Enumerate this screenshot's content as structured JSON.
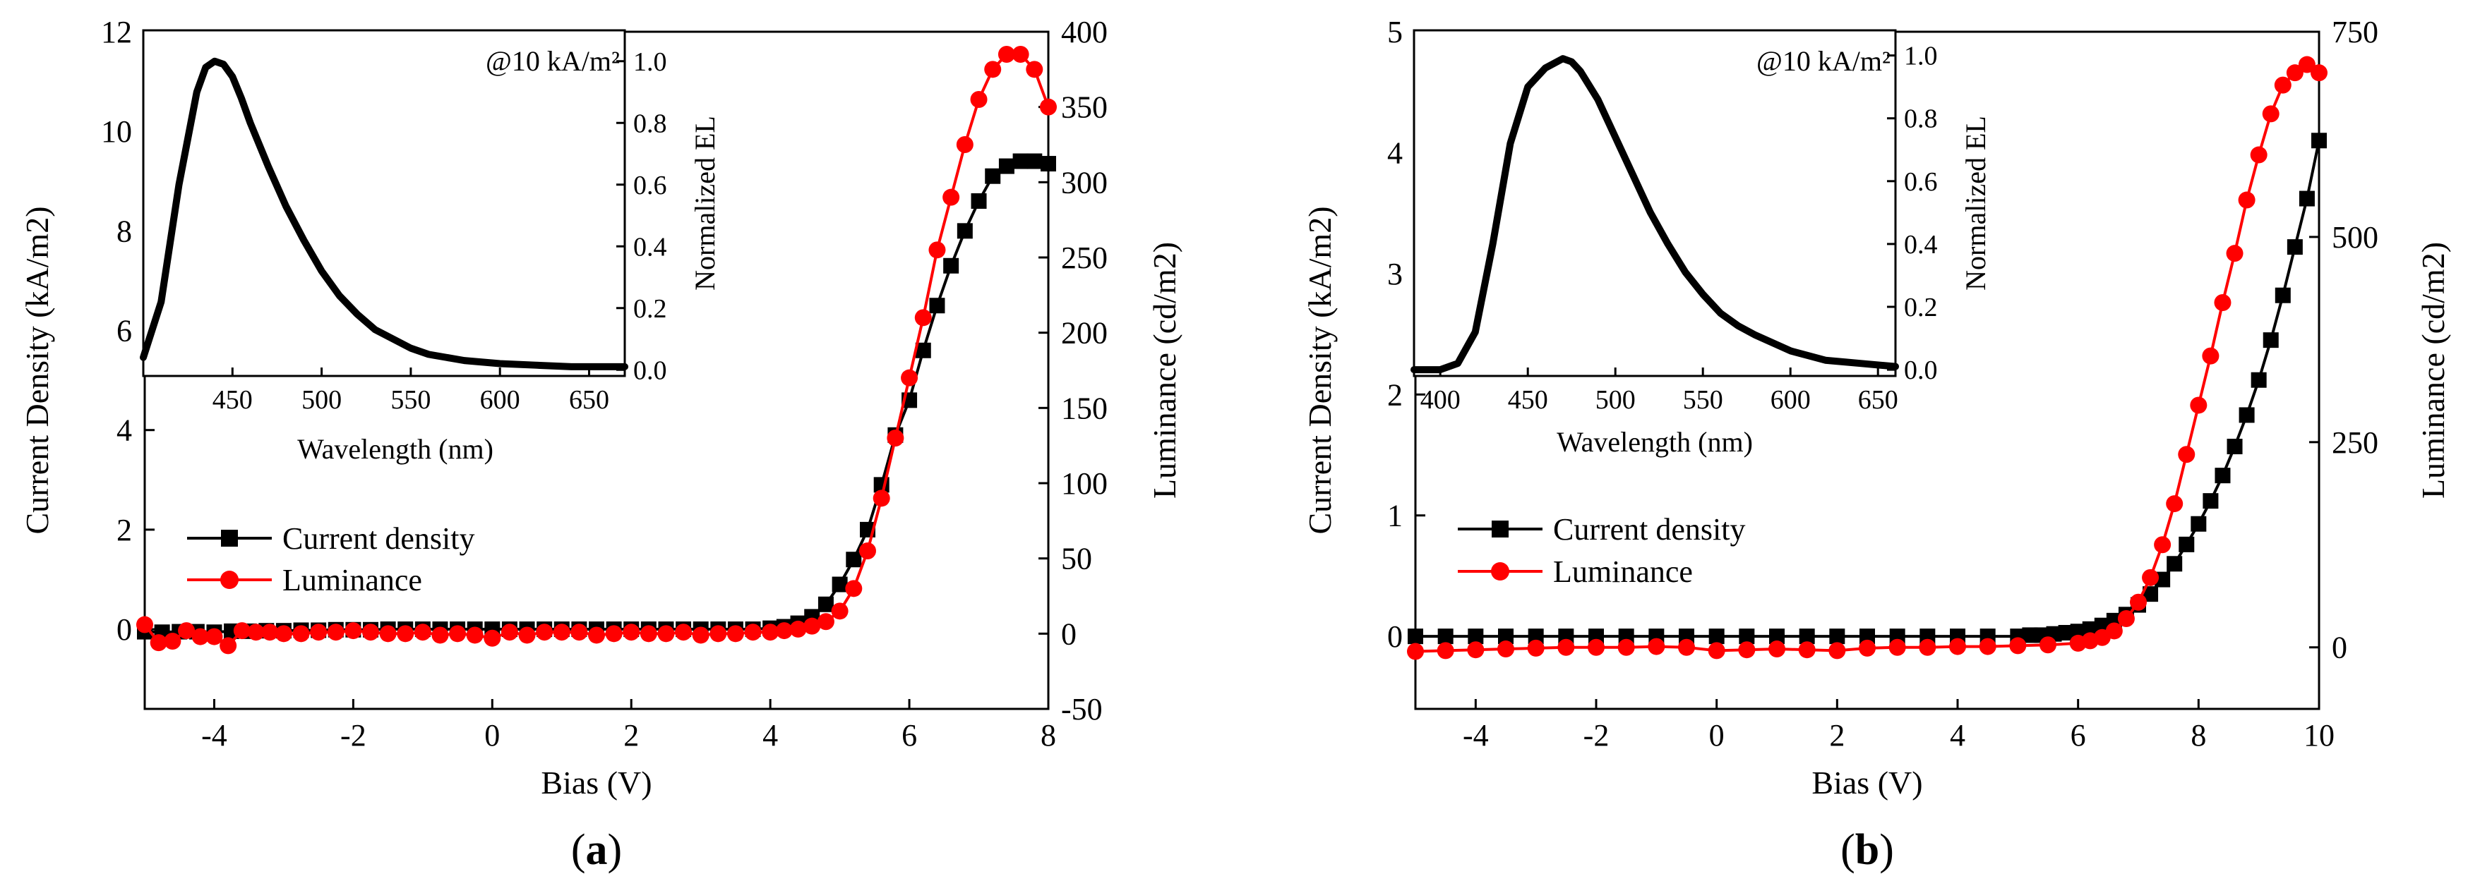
{
  "chart_data": [
    {
      "type": "line",
      "panel_label": "(a)",
      "panel_letter": "a",
      "xlabel": "Bias (V)",
      "ylabel": "Current Density (kA/m2)",
      "y2label": "Luminance (cd/m2)",
      "xlim": [
        -5,
        8
      ],
      "ylim": [
        -1.6,
        12
      ],
      "y2lim": [
        -50,
        400
      ],
      "xticks": [
        -4,
        -2,
        0,
        2,
        4,
        6,
        8
      ],
      "yticks": [
        0,
        2,
        4,
        6,
        8,
        10,
        12
      ],
      "y2ticks": [
        -50,
        0,
        50,
        100,
        150,
        200,
        250,
        300,
        350,
        400
      ],
      "series": [
        {
          "name": "Current density",
          "axis": "left",
          "color": "#000000",
          "marker": "square",
          "x": [
            -5.0,
            -4.75,
            -4.5,
            -4.25,
            -4.0,
            -3.75,
            -3.5,
            -3.25,
            -3.0,
            -2.75,
            -2.5,
            -2.25,
            -2.0,
            -1.75,
            -1.5,
            -1.25,
            -1.0,
            -0.75,
            -0.5,
            -0.25,
            0.0,
            0.25,
            0.5,
            0.75,
            1.0,
            1.25,
            1.5,
            1.75,
            2.0,
            2.25,
            2.5,
            2.75,
            3.0,
            3.25,
            3.5,
            3.75,
            4.0,
            4.2,
            4.4,
            4.6,
            4.8,
            5.0,
            5.2,
            5.4,
            5.6,
            5.8,
            6.0,
            6.2,
            6.4,
            6.6,
            6.8,
            7.0,
            7.2,
            7.4,
            7.6,
            7.8,
            8.0
          ],
          "values": [
            -0.05,
            -0.06,
            -0.05,
            -0.05,
            -0.06,
            -0.04,
            -0.04,
            -0.03,
            -0.03,
            -0.02,
            -0.02,
            -0.01,
            -0.01,
            -0.01,
            0.0,
            0.0,
            0.0,
            0.0,
            0.0,
            0.0,
            0.0,
            0.0,
            0.0,
            0.0,
            0.0,
            0.0,
            0.0,
            0.0,
            0.0,
            0.0,
            0.0,
            0.0,
            0.0,
            0.0,
            0.0,
            0.0,
            0.02,
            0.05,
            0.12,
            0.25,
            0.5,
            0.9,
            1.4,
            2.0,
            2.9,
            3.9,
            4.6,
            5.6,
            6.5,
            7.3,
            8.0,
            8.6,
            9.1,
            9.3,
            9.4,
            9.4,
            9.35
          ]
        },
        {
          "name": "Luminance",
          "axis": "right",
          "color": "#ff0000",
          "marker": "circle",
          "x": [
            -5.0,
            -4.8,
            -4.6,
            -4.4,
            -4.2,
            -4.0,
            -3.8,
            -3.6,
            -3.4,
            -3.2,
            -3.0,
            -2.75,
            -2.5,
            -2.25,
            -2.0,
            -1.75,
            -1.5,
            -1.25,
            -1.0,
            -0.75,
            -0.5,
            -0.25,
            0.0,
            0.25,
            0.5,
            0.75,
            1.0,
            1.25,
            1.5,
            1.75,
            2.0,
            2.25,
            2.5,
            2.75,
            3.0,
            3.25,
            3.5,
            3.75,
            4.0,
            4.2,
            4.4,
            4.6,
            4.8,
            5.0,
            5.2,
            5.4,
            5.6,
            5.8,
            6.0,
            6.2,
            6.4,
            6.6,
            6.8,
            7.0,
            7.2,
            7.4,
            7.6,
            7.8,
            8.0
          ],
          "values": [
            6,
            -6,
            -5,
            2,
            -2,
            -2,
            -8,
            2,
            1,
            1,
            0,
            0,
            1,
            1,
            2,
            1,
            0,
            0,
            1,
            -1,
            0,
            -1,
            -3,
            1,
            -1,
            1,
            1,
            1,
            -1,
            0,
            1,
            0,
            0,
            1,
            -1,
            0,
            0,
            1,
            1,
            2,
            3,
            5,
            8,
            15,
            30,
            55,
            90,
            130,
            170,
            210,
            255,
            290,
            325,
            355,
            375,
            385,
            385,
            375,
            350
          ]
        }
      ],
      "legend": [
        "Current density",
        "Luminance"
      ],
      "inset": {
        "annotation": "@10 kA/m²",
        "xlabel": "Wavelength (nm)",
        "ylabel": "Normalized EL",
        "xlim": [
          400,
          670
        ],
        "ylim": [
          -0.02,
          1.1
        ],
        "xticks": [
          450,
          500,
          550,
          600,
          650
        ],
        "yticks": [
          0.0,
          0.2,
          0.4,
          0.6,
          0.8,
          1.0
        ],
        "x": [
          400,
          410,
          420,
          430,
          435,
          440,
          445,
          450,
          455,
          460,
          470,
          480,
          490,
          500,
          510,
          520,
          530,
          540,
          550,
          560,
          570,
          580,
          600,
          620,
          640,
          670
        ],
        "values": [
          0.04,
          0.22,
          0.6,
          0.9,
          0.98,
          1.0,
          0.99,
          0.95,
          0.88,
          0.8,
          0.66,
          0.53,
          0.42,
          0.32,
          0.24,
          0.18,
          0.13,
          0.1,
          0.07,
          0.05,
          0.04,
          0.03,
          0.02,
          0.015,
          0.01,
          0.01
        ]
      }
    },
    {
      "type": "line",
      "panel_label": "(b)",
      "panel_letter": "b",
      "xlabel": "Bias (V)",
      "ylabel": "Current Density (kA/m2)",
      "y2label": "Luminance (cd/m2)",
      "xlim": [
        -5,
        10
      ],
      "ylim": [
        -0.6,
        5
      ],
      "y2lim": [
        -75,
        750
      ],
      "xticks": [
        -4,
        -2,
        0,
        2,
        4,
        6,
        8,
        10
      ],
      "yticks": [
        0,
        1,
        2,
        3,
        4,
        5
      ],
      "y2ticks": [
        0,
        250,
        500,
        750
      ],
      "series": [
        {
          "name": "Current density",
          "axis": "left",
          "color": "#000000",
          "marker": "square",
          "x": [
            -5.0,
            -4.5,
            -4.0,
            -3.5,
            -3.0,
            -2.5,
            -2.0,
            -1.5,
            -1.0,
            -0.5,
            0.0,
            0.5,
            1.0,
            1.5,
            2.0,
            2.5,
            3.0,
            3.5,
            4.0,
            4.5,
            5.0,
            5.2,
            5.4,
            5.6,
            5.8,
            6.0,
            6.2,
            6.4,
            6.6,
            6.8,
            7.0,
            7.2,
            7.4,
            7.6,
            7.8,
            8.0,
            8.2,
            8.4,
            8.6,
            8.8,
            9.0,
            9.2,
            9.4,
            9.6,
            9.8,
            10.0
          ],
          "values": [
            0.0,
            0.0,
            0.0,
            0.0,
            0.0,
            0.0,
            0.0,
            0.0,
            0.0,
            0.0,
            0.0,
            0.0,
            0.0,
            0.0,
            0.0,
            0.0,
            0.0,
            0.0,
            0.0,
            0.0,
            0.0,
            0.01,
            0.01,
            0.02,
            0.03,
            0.04,
            0.06,
            0.09,
            0.13,
            0.18,
            0.26,
            0.35,
            0.47,
            0.6,
            0.76,
            0.93,
            1.12,
            1.33,
            1.57,
            1.83,
            2.12,
            2.45,
            2.82,
            3.22,
            3.62,
            4.1
          ]
        },
        {
          "name": "Luminance",
          "axis": "right",
          "color": "#ff0000",
          "marker": "circle",
          "x": [
            -5.0,
            -4.5,
            -4.0,
            -3.5,
            -3.0,
            -2.5,
            -2.0,
            -1.5,
            -1.0,
            -0.5,
            0.0,
            0.5,
            1.0,
            1.5,
            2.0,
            2.5,
            3.0,
            3.5,
            4.0,
            4.5,
            5.0,
            5.5,
            6.0,
            6.2,
            6.4,
            6.6,
            6.8,
            7.0,
            7.2,
            7.4,
            7.6,
            7.8,
            8.0,
            8.2,
            8.4,
            8.6,
            8.8,
            9.0,
            9.2,
            9.4,
            9.6,
            9.8,
            10.0
          ],
          "values": [
            -5,
            -4,
            -3,
            -2,
            -1,
            0,
            0,
            0,
            1,
            0,
            -4,
            -3,
            -2,
            -3,
            -4,
            -1,
            0,
            0,
            1,
            1,
            2,
            3,
            5,
            8,
            12,
            20,
            35,
            55,
            85,
            125,
            175,
            235,
            295,
            355,
            420,
            480,
            545,
            600,
            650,
            685,
            700,
            710,
            700
          ]
        }
      ],
      "legend": [
        "Current density",
        "Luminance"
      ],
      "inset": {
        "annotation": "@10 kA/m²",
        "xlabel": "Wavelength (nm)",
        "ylabel": "Normalized EL",
        "xlim": [
          385,
          660
        ],
        "ylim": [
          -0.02,
          1.08
        ],
        "xticks": [
          400,
          450,
          500,
          550,
          600,
          650
        ],
        "yticks": [
          0.0,
          0.2,
          0.4,
          0.6,
          0.8,
          1.0
        ],
        "x": [
          385,
          400,
          410,
          420,
          430,
          440,
          450,
          460,
          470,
          475,
          480,
          490,
          500,
          510,
          520,
          530,
          540,
          550,
          560,
          570,
          580,
          600,
          620,
          640,
          660
        ],
        "values": [
          0.0,
          0.0,
          0.02,
          0.12,
          0.4,
          0.72,
          0.9,
          0.96,
          0.99,
          0.98,
          0.95,
          0.86,
          0.74,
          0.62,
          0.5,
          0.4,
          0.31,
          0.24,
          0.18,
          0.14,
          0.11,
          0.06,
          0.03,
          0.02,
          0.01
        ]
      }
    }
  ]
}
